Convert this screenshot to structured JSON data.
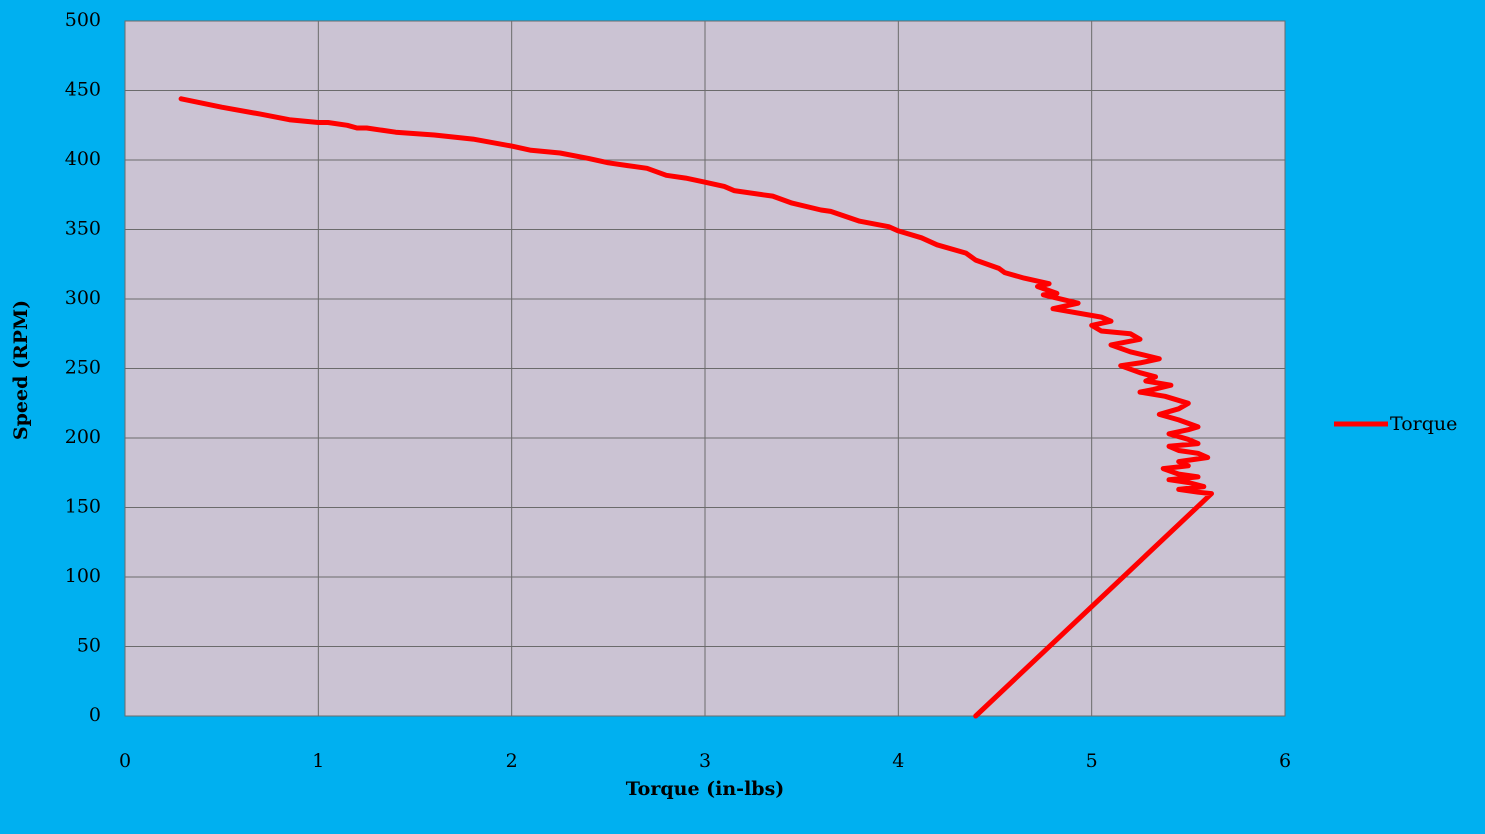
{
  "chart_data": {
    "type": "line",
    "title": "",
    "xlabel": "Torque (in-lbs)",
    "ylabel": "Speed (RPM)",
    "xlim": [
      0,
      6
    ],
    "ylim": [
      0,
      500
    ],
    "x_ticks": [
      "0",
      "1",
      "2",
      "3",
      "4",
      "5",
      "6"
    ],
    "y_ticks": [
      "0",
      "50",
      "100",
      "150",
      "200",
      "250",
      "300",
      "350",
      "400",
      "450",
      "500"
    ],
    "grid": true,
    "legend": {
      "position": "right",
      "entries": [
        "Torque"
      ]
    },
    "colors": {
      "background": "#00b0f0",
      "plot_area": "#cbc3d3",
      "grid": "#6b6b6b",
      "series": "#ff0000"
    },
    "series": [
      {
        "name": "Torque",
        "color": "#ff0000",
        "points": [
          [
            0.29,
            444
          ],
          [
            0.5,
            438
          ],
          [
            0.7,
            433
          ],
          [
            0.85,
            429
          ],
          [
            1.0,
            427
          ],
          [
            1.05,
            427
          ],
          [
            1.15,
            425
          ],
          [
            1.2,
            423
          ],
          [
            1.25,
            423
          ],
          [
            1.4,
            420
          ],
          [
            1.6,
            418
          ],
          [
            1.8,
            415
          ],
          [
            2.0,
            410
          ],
          [
            2.1,
            407
          ],
          [
            2.25,
            405
          ],
          [
            2.4,
            401
          ],
          [
            2.5,
            398
          ],
          [
            2.6,
            396
          ],
          [
            2.7,
            394
          ],
          [
            2.8,
            389
          ],
          [
            2.9,
            387
          ],
          [
            3.0,
            384
          ],
          [
            3.1,
            381
          ],
          [
            3.15,
            378
          ],
          [
            3.3,
            375
          ],
          [
            3.35,
            374
          ],
          [
            3.45,
            369
          ],
          [
            3.6,
            364
          ],
          [
            3.65,
            363
          ],
          [
            3.8,
            356
          ],
          [
            3.95,
            352
          ],
          [
            4.0,
            349
          ],
          [
            4.12,
            344
          ],
          [
            4.2,
            339
          ],
          [
            4.35,
            333
          ],
          [
            4.4,
            328
          ],
          [
            4.52,
            322
          ],
          [
            4.55,
            319
          ],
          [
            4.65,
            315
          ],
          [
            4.78,
            311
          ],
          [
            4.72,
            309
          ],
          [
            4.82,
            304
          ],
          [
            4.75,
            303
          ],
          [
            4.93,
            297
          ],
          [
            4.8,
            293
          ],
          [
            5.05,
            287
          ],
          [
            5.1,
            284
          ],
          [
            5.0,
            281
          ],
          [
            5.05,
            277
          ],
          [
            5.2,
            275
          ],
          [
            5.25,
            271
          ],
          [
            5.1,
            267
          ],
          [
            5.2,
            262
          ],
          [
            5.35,
            257
          ],
          [
            5.25,
            254
          ],
          [
            5.15,
            252
          ],
          [
            5.25,
            247
          ],
          [
            5.33,
            244
          ],
          [
            5.28,
            241
          ],
          [
            5.41,
            238
          ],
          [
            5.32,
            235
          ],
          [
            5.25,
            233
          ],
          [
            5.38,
            230
          ],
          [
            5.5,
            225
          ],
          [
            5.45,
            221
          ],
          [
            5.35,
            217
          ],
          [
            5.45,
            213
          ],
          [
            5.55,
            208
          ],
          [
            5.5,
            206
          ],
          [
            5.4,
            203
          ],
          [
            5.5,
            199
          ],
          [
            5.55,
            196
          ],
          [
            5.4,
            194
          ],
          [
            5.45,
            191
          ],
          [
            5.55,
            189
          ],
          [
            5.6,
            186
          ],
          [
            5.45,
            183
          ],
          [
            5.5,
            180
          ],
          [
            5.37,
            178
          ],
          [
            5.45,
            174
          ],
          [
            5.55,
            172
          ],
          [
            5.4,
            170
          ],
          [
            5.5,
            168
          ],
          [
            5.58,
            165
          ],
          [
            5.45,
            163
          ],
          [
            5.55,
            161
          ],
          [
            5.62,
            160
          ],
          [
            4.4,
            0
          ]
        ]
      }
    ]
  }
}
